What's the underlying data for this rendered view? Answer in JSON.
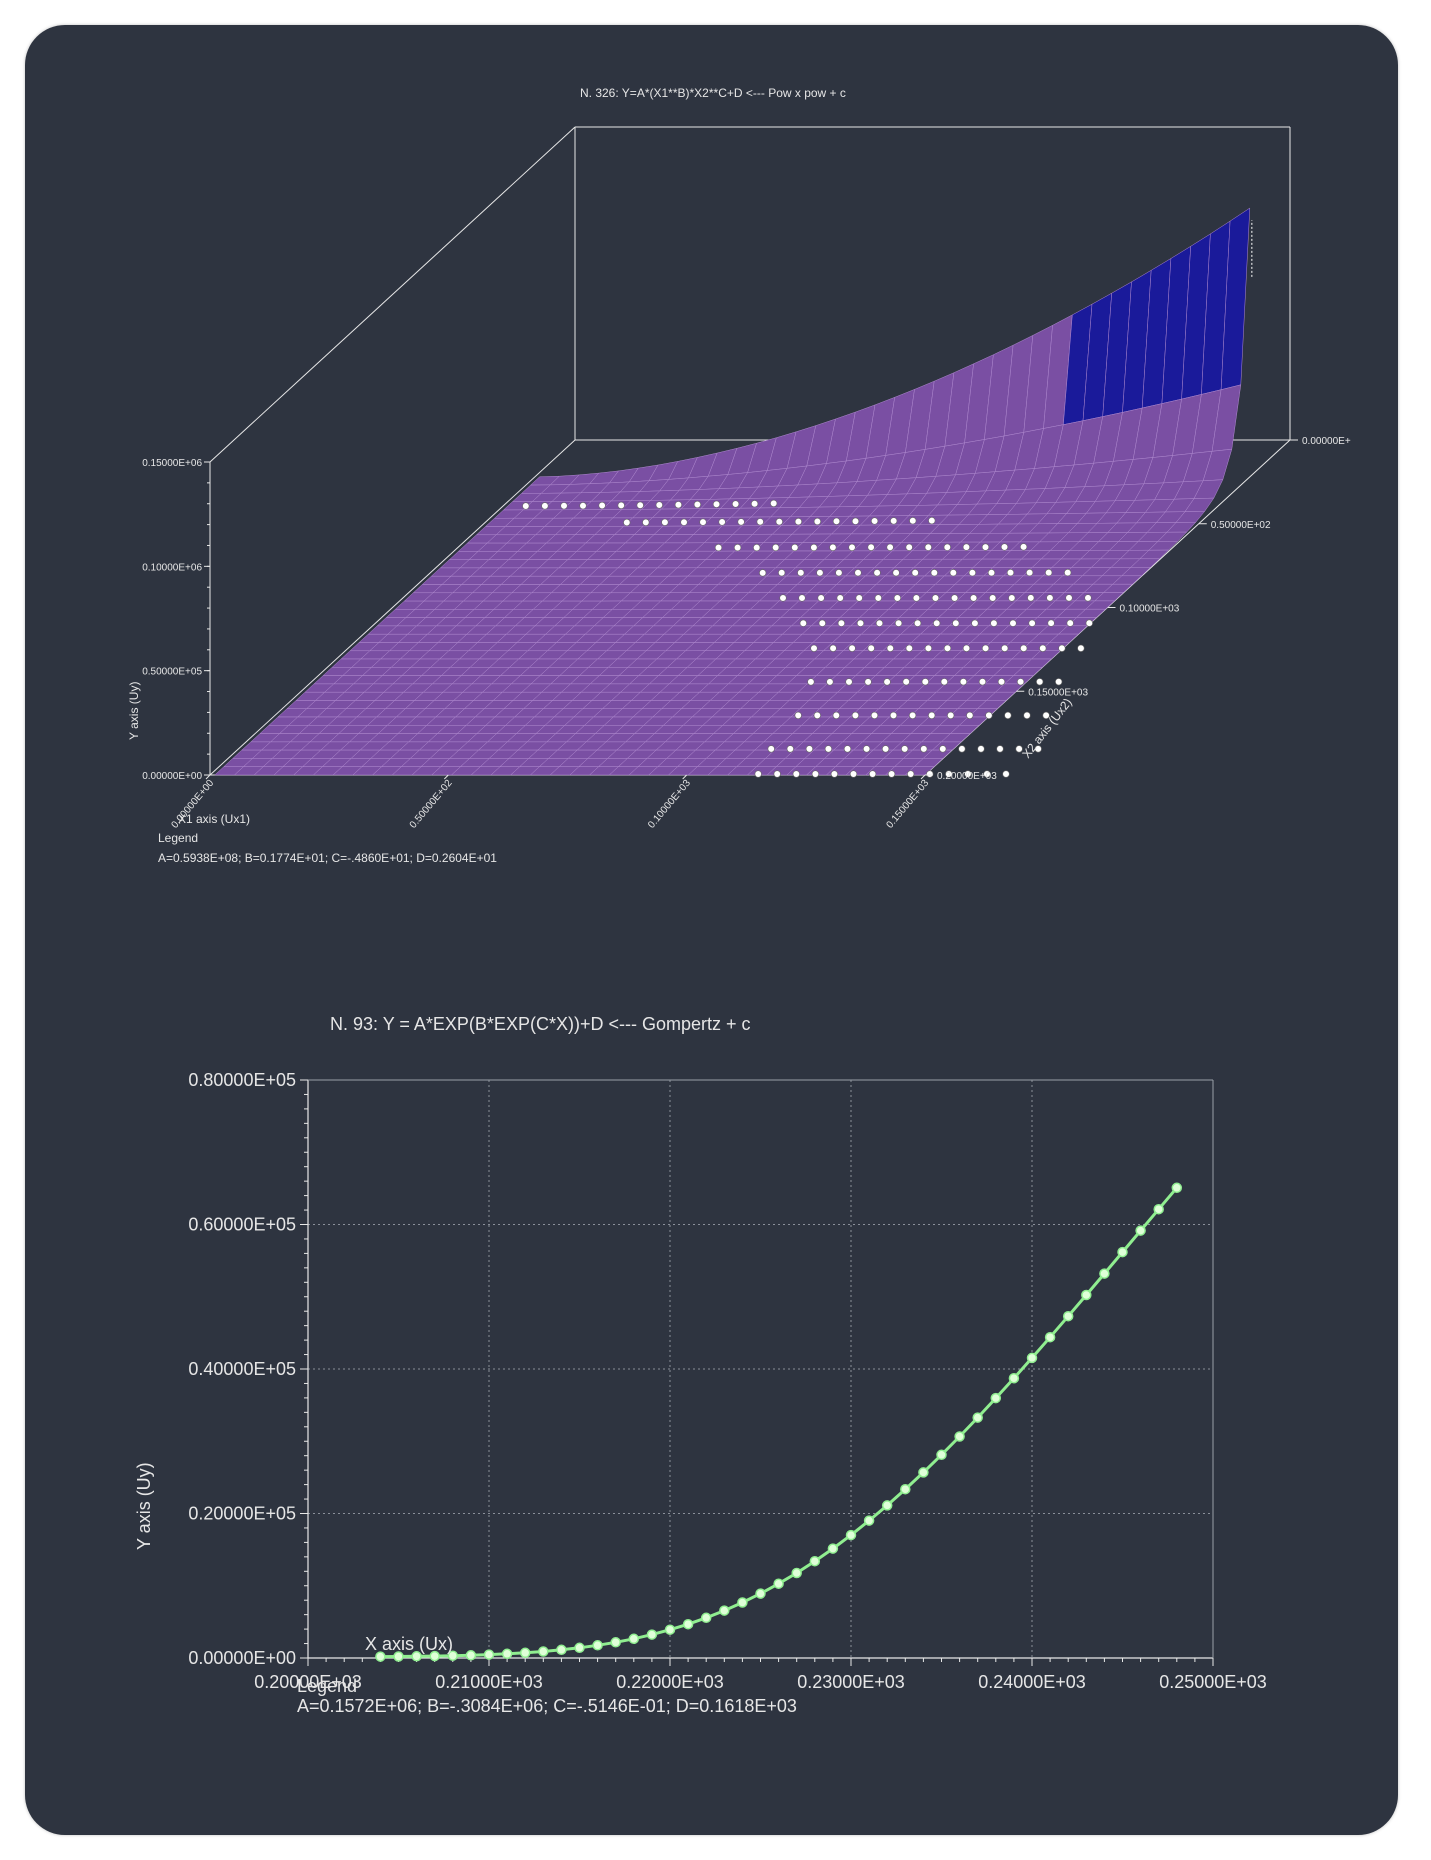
{
  "chart_data": [
    {
      "type": "surface3d",
      "title": "N. 326:   Y=A*(X1**B)*X2**C+D <--- Pow x pow + c",
      "xlabel": "X1 axis (Ux1)",
      "x2label": "X2 axis (Ux2)",
      "ylabel": "Y axis (Uy)",
      "x1_ticks": [
        "0.00000E+00",
        "0.50000E+02",
        "0.10000E+03",
        "0.15000E+03"
      ],
      "x2_ticks": [
        "0.00000E+",
        "0.50000E+02",
        "0.10000E+03",
        "0.15000E+03",
        "0.20000E+03"
      ],
      "y_ticks": [
        "0.00000E+00",
        "0.50000E+05",
        "0.10000E+06",
        "0.15000E+06"
      ],
      "x1lim": [
        0,
        150
      ],
      "x2lim": [
        0,
        200
      ],
      "ylim": [
        0,
        150000
      ],
      "params": {
        "A": 59380000,
        "B": 1.774,
        "C": -4.86,
        "D": 2.604
      },
      "legend_title": "Legend",
      "legend_text": "A=0.5938E+08;  B=0.1774E+01;  C=-.4860E+01;  D=0.2604E+01",
      "surface_colors": [
        "#7a4fa3",
        "#1a1a9a",
        "#1f6f8f",
        "#2a8a80"
      ]
    },
    {
      "type": "line",
      "title": "N.  93:   Y = A*EXP(B*EXP(C*X))+D <--- Gompertz + c",
      "xlabel": "X axis (Ux)",
      "ylabel": "Y axis (Uy)",
      "xlim": [
        200,
        250
      ],
      "ylim": [
        0,
        80000
      ],
      "x_ticks": [
        "0.20000E+03",
        "0.21000E+03",
        "0.22000E+03",
        "0.23000E+03",
        "0.24000E+03",
        "0.25000E+03"
      ],
      "y_ticks": [
        "0.00000E+00",
        "0.20000E+05",
        "0.40000E+05",
        "0.60000E+05",
        "0.80000E+05"
      ],
      "params": {
        "A": 157200,
        "B": -308400,
        "C": -0.05146,
        "D": 161.8
      },
      "x": [
        204,
        205,
        206,
        207,
        208,
        209,
        210,
        211,
        212,
        213,
        214,
        215,
        216,
        217,
        218,
        219,
        220,
        221,
        222,
        223,
        224,
        225,
        226,
        227,
        228,
        229,
        230,
        231,
        232,
        233,
        234,
        235,
        236,
        237,
        238,
        239,
        240,
        241,
        242,
        243,
        244,
        245,
        246,
        247,
        248
      ],
      "legend_title": "Legend",
      "legend_text": "A=0.1572E+06;  B=-.3084E+06;  C=-.5146E-01;  D=0.1618E+03",
      "line_color": "#90ee90",
      "grid": true
    }
  ]
}
